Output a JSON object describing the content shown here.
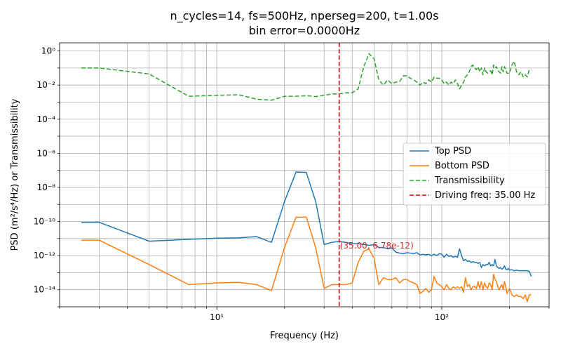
{
  "chart_data": {
    "type": "line",
    "title_line1": "n_cycles=14, fs=500Hz, nperseg=200, t=1.00s",
    "title_line2": "bin error=0.0000Hz",
    "xlabel": "Frequency (Hz)",
    "ylabel": "PSD (m²/s⁴/Hz) or Transmissibility",
    "xscale": "log",
    "yscale": "log",
    "xlim": [
      2.0,
      300
    ],
    "ylim": [
      1e-15,
      3.0
    ],
    "grid": true,
    "legend_position": "center-right",
    "xticks": [
      {
        "value": 10,
        "label": "10¹"
      },
      {
        "value": 100,
        "label": "10²"
      }
    ],
    "yticks": [
      {
        "value": 1e-14,
        "label": "10⁻¹⁴"
      },
      {
        "value": 1e-12,
        "label": "10⁻¹²"
      },
      {
        "value": 1e-10,
        "label": "10⁻¹⁰"
      },
      {
        "value": 1e-08,
        "label": "10⁻⁸"
      },
      {
        "value": 1e-06,
        "label": "10⁻⁶"
      },
      {
        "value": 0.0001,
        "label": "10⁻⁴"
      },
      {
        "value": 0.01,
        "label": "10⁻²"
      },
      {
        "value": 1,
        "label": "10⁰"
      }
    ],
    "series": [
      {
        "name": "Top PSD",
        "color": "#1f77b4",
        "dash": "solid",
        "points": [
          [
            2.5,
            9e-11
          ],
          [
            3.0,
            9e-11
          ],
          [
            5.0,
            7e-12
          ],
          [
            7.5,
            9e-12
          ],
          [
            10,
            1.05e-11
          ],
          [
            12.5,
            1.1e-11
          ],
          [
            15,
            1.3e-11
          ],
          [
            17.5,
            6e-12
          ],
          [
            20,
            1.5e-09
          ],
          [
            22.5,
            8e-08
          ],
          [
            25,
            7.5e-08
          ],
          [
            27.5,
            1.5e-09
          ],
          [
            30,
            4.5e-12
          ],
          [
            32.5,
            6e-12
          ],
          [
            35,
            6.78e-12
          ],
          [
            37.5,
            6e-12
          ],
          [
            40,
            5e-12
          ],
          [
            42.5,
            5e-12
          ],
          [
            45,
            4.5e-12
          ],
          [
            47.5,
            4e-12
          ],
          [
            50,
            4.5e-12
          ],
          [
            52.5,
            3e-12
          ],
          [
            55,
            3e-12
          ],
          [
            57.5,
            2.5e-12
          ],
          [
            60,
            2.8e-12
          ],
          [
            62.5,
            1.6e-12
          ],
          [
            65,
            1.4e-12
          ],
          [
            67.5,
            1.3e-12
          ],
          [
            70,
            1.5e-12
          ],
          [
            72.5,
            1.4e-12
          ],
          [
            75,
            1.3e-12
          ],
          [
            77.5,
            1.5e-12
          ],
          [
            80,
            1.1e-12
          ],
          [
            82.5,
            1.2e-12
          ],
          [
            85,
            1.1e-12
          ],
          [
            87.5,
            1.2e-12
          ],
          [
            90,
            1e-12
          ],
          [
            92.5,
            1.2e-12
          ],
          [
            95,
            1e-12
          ],
          [
            97.5,
            1.3e-12
          ],
          [
            100,
            1.2e-12
          ],
          [
            102.5,
            8e-13
          ],
          [
            105,
            1.2e-12
          ],
          [
            107.5,
            9e-13
          ],
          [
            110,
            1e-12
          ],
          [
            112.5,
            8e-13
          ],
          [
            115,
            9e-13
          ],
          [
            117.5,
            8e-13
          ],
          [
            120,
            2.5e-12
          ],
          [
            122.5,
            1e-12
          ],
          [
            125,
            5e-13
          ],
          [
            127.5,
            6e-13
          ],
          [
            130,
            4.5e-13
          ],
          [
            132.5,
            5e-13
          ],
          [
            135,
            4e-13
          ],
          [
            137.5,
            4.5e-13
          ],
          [
            140,
            4e-13
          ],
          [
            142.5,
            4e-13
          ],
          [
            145,
            3.5e-13
          ],
          [
            147.5,
            4e-13
          ],
          [
            150,
            2e-13
          ],
          [
            152.5,
            3e-13
          ],
          [
            155,
            2.5e-13
          ],
          [
            157.5,
            3e-13
          ],
          [
            160,
            3e-13
          ],
          [
            162.5,
            4e-13
          ],
          [
            165,
            2.5e-13
          ],
          [
            167.5,
            3e-13
          ],
          [
            170,
            2.5e-13
          ],
          [
            172.5,
            6e-13
          ],
          [
            175,
            2.5e-13
          ],
          [
            177.5,
            2e-13
          ],
          [
            180,
            1.8e-13
          ],
          [
            182.5,
            2e-13
          ],
          [
            185,
            1.6e-13
          ],
          [
            187.5,
            1.8e-13
          ],
          [
            190,
            2.5e-13
          ],
          [
            192.5,
            1.6e-13
          ],
          [
            195,
            1.5e-13
          ],
          [
            197.5,
            1.8e-13
          ],
          [
            200,
            1.4e-13
          ],
          [
            205,
            1.5e-13
          ],
          [
            210,
            1.3e-13
          ],
          [
            215,
            1.4e-13
          ],
          [
            220,
            1.3e-13
          ],
          [
            225,
            1.3e-13
          ],
          [
            230,
            1.3e-13
          ],
          [
            235,
            1.3e-13
          ],
          [
            240,
            1.3e-13
          ],
          [
            245,
            1.2e-13
          ],
          [
            250,
            6e-14
          ]
        ]
      },
      {
        "name": "Bottom PSD",
        "color": "#ff7f0e",
        "dash": "solid",
        "points": [
          [
            2.5,
            8e-12
          ],
          [
            3.0,
            8e-12
          ],
          [
            5.0,
            3e-13
          ],
          [
            7.5,
            2e-14
          ],
          [
            10,
            2.5e-14
          ],
          [
            12.5,
            2.7e-14
          ],
          [
            15,
            2e-14
          ],
          [
            17.5,
            9e-15
          ],
          [
            20,
            3e-12
          ],
          [
            22.5,
            1.8e-10
          ],
          [
            25,
            1.8e-10
          ],
          [
            27.5,
            3e-12
          ],
          [
            30,
            1.2e-14
          ],
          [
            32.5,
            2e-14
          ],
          [
            35,
            2e-14
          ],
          [
            37.5,
            2e-14
          ],
          [
            40,
            2.5e-14
          ],
          [
            42.5,
            4e-13
          ],
          [
            45,
            1.8e-12
          ],
          [
            47.5,
            2.5e-12
          ],
          [
            50,
            7e-13
          ],
          [
            52.5,
            2e-14
          ],
          [
            55,
            5e-14
          ],
          [
            57.5,
            4e-14
          ],
          [
            60,
            4e-14
          ],
          [
            62.5,
            5e-14
          ],
          [
            65,
            2.5e-14
          ],
          [
            67.5,
            4e-14
          ],
          [
            70,
            4e-14
          ],
          [
            72.5,
            3e-14
          ],
          [
            75,
            2.5e-14
          ],
          [
            77.5,
            2e-14
          ],
          [
            80,
            6e-15
          ],
          [
            82.5,
            8e-15
          ],
          [
            85,
            1.2e-14
          ],
          [
            87.5,
            7e-15
          ],
          [
            90,
            1e-14
          ],
          [
            92.5,
            6e-14
          ],
          [
            95,
            2.5e-14
          ],
          [
            97.5,
            2e-14
          ],
          [
            100,
            1.5e-14
          ],
          [
            102.5,
            1e-14
          ],
          [
            105,
            2e-14
          ],
          [
            107.5,
            1.2e-14
          ],
          [
            110,
            1e-14
          ],
          [
            112.5,
            1.5e-14
          ],
          [
            115,
            1.2e-14
          ],
          [
            117.5,
            1.5e-14
          ],
          [
            120,
            1.2e-14
          ],
          [
            122.5,
            1.5e-14
          ],
          [
            125,
            7e-15
          ],
          [
            127.5,
            5e-14
          ],
          [
            130,
            1.5e-14
          ],
          [
            132.5,
            2e-14
          ],
          [
            135,
            1e-14
          ],
          [
            137.5,
            1.5e-14
          ],
          [
            140,
            1.5e-14
          ],
          [
            142.5,
            1.2e-14
          ],
          [
            145,
            3e-14
          ],
          [
            147.5,
            1.2e-14
          ],
          [
            150,
            3e-14
          ],
          [
            152.5,
            1e-14
          ],
          [
            155,
            2.5e-14
          ],
          [
            157.5,
            1.5e-14
          ],
          [
            160,
            1.2e-14
          ],
          [
            162.5,
            2.5e-14
          ],
          [
            165,
            2e-14
          ],
          [
            167.5,
            1e-14
          ],
          [
            170,
            8e-14
          ],
          [
            172.5,
            4e-14
          ],
          [
            175,
            3e-14
          ],
          [
            177.5,
            1.5e-14
          ],
          [
            180,
            1e-14
          ],
          [
            182.5,
            1.5e-14
          ],
          [
            185,
            2e-14
          ],
          [
            187.5,
            1e-14
          ],
          [
            190,
            3e-14
          ],
          [
            192.5,
            1.5e-14
          ],
          [
            195,
            6e-15
          ],
          [
            200,
            1.2e-14
          ],
          [
            205,
            5e-15
          ],
          [
            210,
            4e-15
          ],
          [
            215,
            5e-15
          ],
          [
            220,
            4e-15
          ],
          [
            225,
            4e-15
          ],
          [
            230,
            3e-15
          ],
          [
            235,
            5e-15
          ],
          [
            240,
            2e-15
          ],
          [
            245,
            5e-15
          ],
          [
            250,
            5e-15
          ]
        ]
      },
      {
        "name": "Transmissibility",
        "color": "#2ca02c",
        "dash": "dashed",
        "points": [
          [
            2.5,
            0.1
          ],
          [
            3.0,
            0.1
          ],
          [
            5.0,
            0.045
          ],
          [
            7.5,
            0.0022
          ],
          [
            10,
            0.0025
          ],
          [
            12.5,
            0.0027
          ],
          [
            15,
            0.0015
          ],
          [
            17.5,
            0.0013
          ],
          [
            20,
            0.0022
          ],
          [
            22.5,
            0.0022
          ],
          [
            25,
            0.0024
          ],
          [
            27.5,
            0.0021
          ],
          [
            30,
            0.0025
          ],
          [
            32.5,
            0.003
          ],
          [
            35,
            0.003
          ],
          [
            37.5,
            0.0035
          ],
          [
            40,
            0.0035
          ],
          [
            42.5,
            0.006
          ],
          [
            45,
            0.12
          ],
          [
            47.5,
            0.7
          ],
          [
            50,
            0.35
          ],
          [
            52.5,
            0.02
          ],
          [
            55,
            0.01
          ],
          [
            57.5,
            0.02
          ],
          [
            60,
            0.012
          ],
          [
            62.5,
            0.015
          ],
          [
            65,
            0.016
          ],
          [
            67.5,
            0.035
          ],
          [
            70,
            0.035
          ],
          [
            72.5,
            0.025
          ],
          [
            75,
            0.02
          ],
          [
            77.5,
            0.015
          ],
          [
            80,
            0.01
          ],
          [
            82.5,
            0.015
          ],
          [
            85,
            0.012
          ],
          [
            87.5,
            0.02
          ],
          [
            90,
            0.015
          ],
          [
            92.5,
            0.03
          ],
          [
            95,
            0.025
          ],
          [
            97.5,
            0.025
          ],
          [
            100,
            0.02
          ],
          [
            102.5,
            0.012
          ],
          [
            105,
            0.015
          ],
          [
            107.5,
            0.01
          ],
          [
            110,
            0.015
          ],
          [
            112.5,
            0.012
          ],
          [
            115,
            0.02
          ],
          [
            117.5,
            0.012
          ],
          [
            120,
            0.006
          ],
          [
            122.5,
            0.01
          ],
          [
            125,
            0.015
          ],
          [
            127.5,
            0.03
          ],
          [
            130,
            0.04
          ],
          [
            132.5,
            0.06
          ],
          [
            135,
            0.12
          ],
          [
            137.5,
            0.15
          ],
          [
            140,
            0.1
          ],
          [
            142.5,
            0.08
          ],
          [
            145,
            0.12
          ],
          [
            147.5,
            0.06
          ],
          [
            150,
            0.1
          ],
          [
            152.5,
            0.04
          ],
          [
            155,
            0.1
          ],
          [
            157.5,
            0.06
          ],
          [
            160,
            0.05
          ],
          [
            162.5,
            0.06
          ],
          [
            165,
            0.07
          ],
          [
            167.5,
            0.04
          ],
          [
            170,
            0.15
          ],
          [
            172.5,
            0.1
          ],
          [
            175,
            0.12
          ],
          [
            177.5,
            0.07
          ],
          [
            180,
            0.06
          ],
          [
            182.5,
            0.05
          ],
          [
            185,
            0.12
          ],
          [
            187.5,
            0.06
          ],
          [
            190,
            0.12
          ],
          [
            192.5,
            0.08
          ],
          [
            195,
            0.05
          ],
          [
            200,
            0.05
          ],
          [
            205,
            0.15
          ],
          [
            210,
            0.25
          ],
          [
            215,
            0.06
          ],
          [
            220,
            0.04
          ],
          [
            225,
            0.06
          ],
          [
            230,
            0.03
          ],
          [
            235,
            0.04
          ],
          [
            240,
            0.03
          ],
          [
            245,
            0.08
          ],
          [
            250,
            0.08
          ]
        ]
      }
    ],
    "driving_line": {
      "name": "Driving freq: 35.00 Hz",
      "x": 35.0,
      "color": "#d62728"
    },
    "annotation": {
      "text": "(35.00, 6.78e-12)",
      "x": 35.0,
      "y": 6.78e-12,
      "color": "#d62728"
    }
  }
}
